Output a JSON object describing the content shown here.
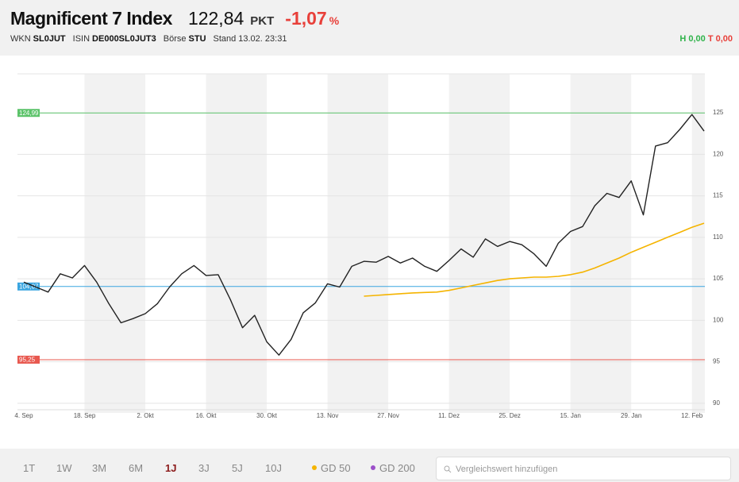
{
  "header": {
    "title": "Magnificent 7 Index",
    "price": "122,84",
    "unit": "PKT",
    "change": "-1,07",
    "change_unit": "%",
    "meta": [
      {
        "label": "WKN",
        "value": "SL0JUT"
      },
      {
        "label": "ISIN",
        "value": "DE000SL0JUT3"
      },
      {
        "label": "Börse",
        "value": "STU"
      },
      {
        "label": "Stand",
        "value": "13.02. 23:31"
      }
    ],
    "high": "H 0,00",
    "low": "T 0,00"
  },
  "chart_data": {
    "type": "line",
    "categories": [
      "4. Sep",
      null,
      null,
      null,
      null,
      "18. Sep",
      null,
      null,
      null,
      null,
      "2. Okt",
      null,
      null,
      null,
      null,
      "16. Okt",
      null,
      null,
      null,
      null,
      "30. Okt",
      null,
      null,
      null,
      null,
      "13. Nov",
      null,
      null,
      null,
      null,
      "27. Nov",
      null,
      null,
      null,
      null,
      "11. Dez",
      null,
      null,
      null,
      null,
      "25. Dez",
      null,
      null,
      null,
      null,
      "15. Jan",
      null,
      null,
      null,
      null,
      "29. Jan",
      null,
      null,
      null,
      null,
      "12. Feb",
      null
    ],
    "series": [
      {
        "color": "#222222",
        "values": [
          104.6,
          104.0,
          103.4,
          105.6,
          105.1,
          106.6,
          104.6,
          102.0,
          99.7,
          100.2,
          100.8,
          102.0,
          104.0,
          105.6,
          106.6,
          105.4,
          105.5,
          102.5,
          99.1,
          100.6,
          97.4,
          95.8,
          97.7,
          100.9,
          102.1,
          104.4,
          104.0,
          106.5,
          107.1,
          107.0,
          107.7,
          106.9,
          107.5,
          106.5,
          105.9,
          107.2,
          108.6,
          107.6,
          109.8,
          108.9,
          109.5,
          109.1,
          108.0,
          106.5,
          109.3,
          110.7,
          111.3,
          113.8,
          115.3,
          114.8,
          116.8,
          112.7,
          121.0,
          121.4,
          123.0,
          124.8,
          122.8
        ]
      },
      {
        "name": "GD 50",
        "color": "#f5b400",
        "values": [
          null,
          null,
          null,
          null,
          null,
          null,
          null,
          null,
          null,
          null,
          null,
          null,
          null,
          null,
          null,
          null,
          null,
          null,
          null,
          null,
          null,
          null,
          null,
          null,
          null,
          null,
          null,
          null,
          102.9,
          103.0,
          103.1,
          103.2,
          103.3,
          103.35,
          103.4,
          103.6,
          103.9,
          104.2,
          104.5,
          104.8,
          105.0,
          105.1,
          105.2,
          105.2,
          105.3,
          105.5,
          105.8,
          106.3,
          106.9,
          107.5,
          108.2,
          108.8,
          109.4,
          110.0,
          110.6,
          111.2,
          111.7
        ]
      }
    ],
    "reference_lines": [
      {
        "value": 124.99,
        "label": "124,99",
        "color": "#5cc36a"
      },
      {
        "value": 104.07,
        "label": "104,07",
        "color": "#3aa5e0"
      },
      {
        "value": 95.25,
        "label": "95,25",
        "color": "#e8584f"
      }
    ],
    "ylim": [
      89.6,
      129.7
    ],
    "yticks": [
      90,
      95,
      100,
      105,
      110,
      115,
      120,
      125
    ],
    "grid": true
  },
  "controls": {
    "ranges": [
      "1T",
      "1W",
      "3M",
      "6M",
      "1J",
      "3J",
      "5J",
      "10J"
    ],
    "active": "1J",
    "gd200": "GD 200",
    "search": "Vergleichswert hinzufügen"
  }
}
